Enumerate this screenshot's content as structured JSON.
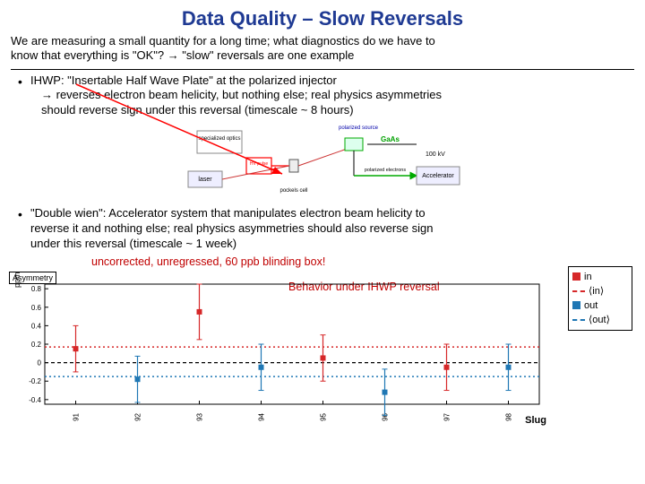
{
  "title": "Data Quality – Slow Reversals",
  "intro_line1": "We are measuring a small quantity for a long time; what diagnostics do we have to",
  "intro_line2": "know that everything is \"OK\"?      →  \"slow\" reversals are one example",
  "bullet1_l1": "IHWP: \"Insertable Half Wave Plate\" at the polarized injector",
  "bullet1_l2": "→ reverses electron beam helicity, but nothing else; real physics asymmetries",
  "bullet1_l3": "should reverse sign under this reversal  (timescale ~ 8 hours)",
  "bullet2_l1": "\"Double wien\": Accelerator system that manipulates electron beam helicity to",
  "bullet2_l2": "reverse it and nothing else;  real physics asymmetries should also reverse sign",
  "bullet2_l3": "under this reversal  (timescale ~ 1 week)",
  "caption1": "uncorrected, unregressed, 60 ppb blinding box!",
  "caption2": "Behavior under IHWP reversal",
  "diagram": {
    "labels": {
      "spec_optics": "specialized optics",
      "laser": "laser",
      "hv_pulse": "HV pulse",
      "pockels": "pockels cell",
      "pol_src": "polarized source",
      "gaas": "GaAs",
      "kv": "100 kV",
      "pol_el": "polarized electrons",
      "accel": "Accelerator"
    },
    "colors": {
      "hv_box": "#ff0000",
      "gaas": "#00a000",
      "text": "#0000aa"
    }
  },
  "chart": {
    "type": "scatter-errorbar",
    "x_ticks": [
      91,
      92,
      93,
      94,
      95,
      96,
      97,
      98
    ],
    "y_ticks": [
      -0.4,
      -0.2,
      0,
      0.2,
      0.4,
      0.6,
      0.8
    ],
    "ylim": [
      -0.45,
      0.85
    ],
    "xlim": [
      90.5,
      98.5
    ],
    "ylabel_box": "Asymmetry",
    "ppm": "ppm",
    "xlabel": "Slug",
    "axis_color": "#000000",
    "grid_color": "#cccccc",
    "in_color": "#d62728",
    "out_color": "#1f77b4",
    "in_mean": 0.17,
    "out_mean": -0.15,
    "legend": {
      "in": "in",
      "in_mean": "⟨in⟩",
      "out": "out",
      "out_mean": "⟨out⟩"
    },
    "points_in": [
      {
        "x": 91,
        "y": 0.15,
        "e": 0.25
      },
      {
        "x": 93,
        "y": 0.55,
        "e": 0.3
      },
      {
        "x": 95,
        "y": 0.05,
        "e": 0.25
      },
      {
        "x": 97,
        "y": -0.05,
        "e": 0.25
      }
    ],
    "points_out": [
      {
        "x": 92,
        "y": -0.18,
        "e": 0.25
      },
      {
        "x": 94,
        "y": -0.05,
        "e": 0.25
      },
      {
        "x": 96,
        "y": -0.32,
        "e": 0.25
      },
      {
        "x": 98,
        "y": -0.05,
        "e": 0.25
      }
    ]
  }
}
